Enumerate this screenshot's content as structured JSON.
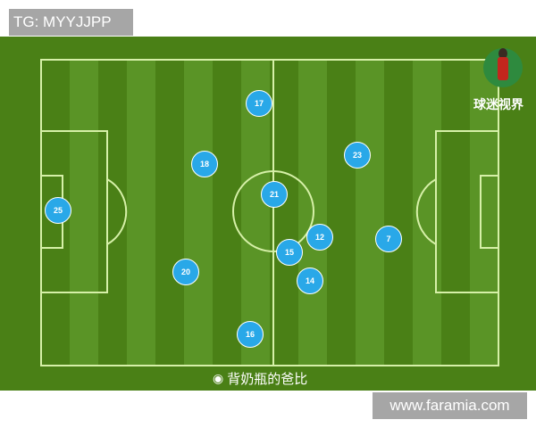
{
  "watermark_top": "TG: MYYJJPP",
  "watermark_bottom": "www.faramia.com",
  "brand": "球迷视界",
  "credit": {
    "icon": "weibo-icon",
    "text": "背奶瓶的爸比"
  },
  "colors": {
    "pitch": "#4a8016",
    "player": "#29a8e8"
  },
  "players": [
    "17",
    "18",
    "23",
    "21",
    "25",
    "12",
    "7",
    "15",
    "20",
    "14",
    "16"
  ]
}
